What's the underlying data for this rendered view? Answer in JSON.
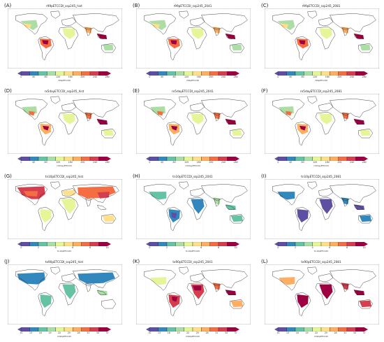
{
  "panels": [
    {
      "letter": "(A)",
      "title": "r99pETCCDI_ssp245_hist",
      "unit": "r99pETCCDI",
      "ticks": [
        "0",
        "40",
        "80",
        "120",
        "160",
        "200",
        "240",
        "280"
      ],
      "palette": "spectral_rev",
      "pattern": "A"
    },
    {
      "letter": "(B)",
      "title": "r99pETCCDI_ssp245_2041",
      "unit": "r99pETCCDI",
      "ticks": [
        "0",
        "40",
        "80",
        "120",
        "160",
        "200",
        "240",
        "280"
      ],
      "palette": "spectral_rev",
      "pattern": "A"
    },
    {
      "letter": "(C)",
      "title": "r99pETCCDI_ssp245_2081",
      "unit": "r99pETCCDI",
      "ticks": [
        "0",
        "40",
        "80",
        "120",
        "160",
        "200",
        "240",
        "280"
      ],
      "palette": "spectral_rev",
      "pattern": "A"
    },
    {
      "letter": "(D)",
      "title": "rx5dayETCCDI_ssp245_hist",
      "unit": "rx5dayETCCDI",
      "ticks": [
        "0",
        "40",
        "80",
        "120",
        "160",
        "200",
        "240",
        "280"
      ],
      "palette": "spectral_rev",
      "pattern": "D"
    },
    {
      "letter": "(E)",
      "title": "rx5dayETCCDI_ssp245_2041",
      "unit": "rx5dayETCCDI",
      "ticks": [
        "0",
        "40",
        "80",
        "120",
        "160",
        "200",
        "240",
        "280"
      ],
      "palette": "spectral_rev",
      "pattern": "D"
    },
    {
      "letter": "(F)",
      "title": "rx5dayETCCDI_ssp245_2081",
      "unit": "rx5dayETCCDI",
      "ticks": [
        "0",
        "40",
        "80",
        "120",
        "160",
        "200",
        "240",
        "280"
      ],
      "palette": "spectral_rev",
      "pattern": "D"
    },
    {
      "letter": "(G)",
      "title": "tn10pETCCDI_ssp245_hist",
      "unit": "tn10pETCCDI",
      "ticks": [
        "0",
        "2",
        "4",
        "6",
        "8",
        "10"
      ],
      "palette": "spectral_rev",
      "pattern": "G"
    },
    {
      "letter": "(H)",
      "title": "tn10pETCCDI_ssp245_2041",
      "unit": "tn10pETCCDI",
      "ticks": [
        "0",
        "2",
        "4",
        "6",
        "8",
        "10"
      ],
      "palette": "spectral_rev",
      "pattern": "H"
    },
    {
      "letter": "(I)",
      "title": "tn10pETCCDI_ssp245_2081",
      "unit": "tn10pETCCDI",
      "ticks": [
        "0",
        "2",
        "4",
        "6",
        "8",
        "10"
      ],
      "palette": "spectral_rev",
      "pattern": "I"
    },
    {
      "letter": "(J)",
      "title": "tx90pETCCDI_ssp245_hist",
      "unit": "tx90pETCCDI",
      "ticks": [
        "10",
        "13",
        "16",
        "19",
        "22",
        "25",
        "28",
        "31",
        "34",
        "37"
      ],
      "palette": "spectral_rev",
      "pattern": "J"
    },
    {
      "letter": "(K)",
      "title": "tx90pETCCDI_ssp245_2041",
      "unit": "tx90pETCCDI",
      "ticks": [
        "10",
        "13",
        "16",
        "19",
        "22",
        "25",
        "28",
        "31",
        "34",
        "37"
      ],
      "palette": "spectral_rev",
      "pattern": "K"
    },
    {
      "letter": "(L)",
      "title": "tx90pETCCDI_ssp245_2081",
      "unit": "tx90pETCCDI",
      "ticks": [
        "10",
        "13",
        "16",
        "19",
        "22",
        "25",
        "28",
        "31",
        "34",
        "37"
      ],
      "palette": "spectral_rev",
      "pattern": "L"
    }
  ],
  "colors": {
    "spectral_rev": [
      "#5e4fa2",
      "#3288bd",
      "#66c2a5",
      "#abdda4",
      "#e6f598",
      "#fee08b",
      "#fdae61",
      "#f46d43",
      "#d53e4f",
      "#9e0142"
    ],
    "coast": "#222222",
    "frame": "#555555"
  }
}
